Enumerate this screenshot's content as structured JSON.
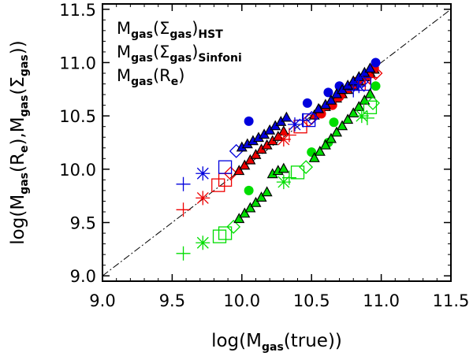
{
  "chart_data": {
    "type": "scatter",
    "title": "",
    "xlabel": {
      "pre": "log(M",
      "sub": "gas",
      "post": "(true))"
    },
    "ylabel": {
      "p1": "log(M",
      "s1": "gas",
      "p2": "(R",
      "s2": "e",
      "p3": "),M",
      "s3": "gas",
      "p4": "(Σ",
      "s4": "gas",
      "p5": "))"
    },
    "xlim": [
      9.0,
      11.5
    ],
    "ylim": [
      8.95,
      11.55
    ],
    "xticks": [
      "9.0",
      "9.5",
      "10.0",
      "10.5",
      "11.0",
      "11.5"
    ],
    "xtick_values": [
      9.0,
      9.5,
      10.0,
      10.5,
      11.0,
      11.5
    ],
    "yticks": [
      "9.0",
      "9.5",
      "10.0",
      "10.5",
      "11.0",
      "11.5"
    ],
    "ytick_values": [
      9.0,
      9.5,
      10.0,
      10.5,
      11.0,
      11.5
    ],
    "one_to_one_line": {
      "style": "dash-dot",
      "from": [
        9.0,
        9.0
      ],
      "to": [
        11.5,
        11.5
      ]
    },
    "legend": [
      {
        "pre": "M",
        "s1": "gas",
        "mid": "(Σ",
        "s2": "gas",
        "close": ")",
        "s3": "HST",
        "color": "#ee0000"
      },
      {
        "pre": "M",
        "s1": "gas",
        "mid": "(Σ",
        "s2": "gas",
        "close": ")",
        "s3": "Sinfoni",
        "color": "#0000dd"
      },
      {
        "pre": "M",
        "s1": "gas",
        "mid": "(R",
        "s2": "e",
        "close": ")",
        "s3": "",
        "color": "#00dd00"
      }
    ],
    "series": [
      {
        "name": "Mgas(Σgas)HST",
        "color": "#ee0000",
        "points": [
          {
            "m": "plus",
            "x": 9.58,
            "y": 9.62
          },
          {
            "m": "star",
            "x": 9.72,
            "y": 9.73
          },
          {
            "m": "square",
            "x": 9.83,
            "y": 9.85
          },
          {
            "m": "square",
            "x": 9.88,
            "y": 9.9
          },
          {
            "m": "diamond",
            "x": 9.92,
            "y": 9.96
          },
          {
            "m": "tri",
            "x": 9.98,
            "y": 9.98
          },
          {
            "m": "tri",
            "x": 10.02,
            "y": 10.03
          },
          {
            "m": "tri",
            "x": 10.06,
            "y": 10.08
          },
          {
            "m": "tri",
            "x": 10.1,
            "y": 10.13
          },
          {
            "m": "tri",
            "x": 10.14,
            "y": 10.18
          },
          {
            "m": "tri",
            "x": 10.18,
            "y": 10.22
          },
          {
            "m": "tri",
            "x": 10.22,
            "y": 10.26
          },
          {
            "m": "tri",
            "x": 10.26,
            "y": 10.3
          },
          {
            "m": "tri",
            "x": 10.3,
            "y": 10.35
          },
          {
            "m": "star",
            "x": 10.3,
            "y": 10.28
          },
          {
            "m": "plus",
            "x": 10.34,
            "y": 10.32
          },
          {
            "m": "square",
            "x": 10.42,
            "y": 10.4
          },
          {
            "m": "diamond",
            "x": 10.48,
            "y": 10.46
          },
          {
            "m": "tri",
            "x": 10.52,
            "y": 10.5
          },
          {
            "m": "tri",
            "x": 10.56,
            "y": 10.55
          },
          {
            "m": "tri",
            "x": 10.6,
            "y": 10.58
          },
          {
            "m": "tri",
            "x": 10.64,
            "y": 10.62
          },
          {
            "m": "tri",
            "x": 10.68,
            "y": 10.66
          },
          {
            "m": "tri",
            "x": 10.72,
            "y": 10.7
          },
          {
            "m": "circle",
            "x": 10.57,
            "y": 10.52
          },
          {
            "m": "circle",
            "x": 10.65,
            "y": 10.6
          },
          {
            "m": "circle",
            "x": 10.7,
            "y": 10.68
          },
          {
            "m": "tri",
            "x": 10.76,
            "y": 10.74
          },
          {
            "m": "tri",
            "x": 10.8,
            "y": 10.78
          },
          {
            "m": "tri",
            "x": 10.84,
            "y": 10.82
          },
          {
            "m": "tri",
            "x": 10.88,
            "y": 10.86
          },
          {
            "m": "tri",
            "x": 10.92,
            "y": 10.9
          },
          {
            "m": "tri",
            "x": 10.95,
            "y": 10.93
          },
          {
            "m": "circle",
            "x": 10.9,
            "y": 10.88
          },
          {
            "m": "circle",
            "x": 10.95,
            "y": 10.95
          },
          {
            "m": "star",
            "x": 10.88,
            "y": 10.85
          },
          {
            "m": "plus",
            "x": 10.92,
            "y": 10.86
          },
          {
            "m": "square",
            "x": 10.84,
            "y": 10.8
          },
          {
            "m": "diamond",
            "x": 10.96,
            "y": 10.9
          }
        ]
      },
      {
        "name": "Mgas(Σgas)Sinfoni",
        "color": "#0000dd",
        "points": [
          {
            "m": "plus",
            "x": 9.58,
            "y": 9.86
          },
          {
            "m": "star",
            "x": 9.72,
            "y": 9.96
          },
          {
            "m": "square",
            "x": 9.88,
            "y": 10.02
          },
          {
            "m": "diamond",
            "x": 9.96,
            "y": 10.17
          },
          {
            "m": "tri",
            "x": 10.0,
            "y": 10.2
          },
          {
            "m": "tri",
            "x": 10.04,
            "y": 10.23
          },
          {
            "m": "tri",
            "x": 10.08,
            "y": 10.26
          },
          {
            "m": "tri",
            "x": 10.12,
            "y": 10.29
          },
          {
            "m": "tri",
            "x": 10.16,
            "y": 10.32
          },
          {
            "m": "tri",
            "x": 10.2,
            "y": 10.36
          },
          {
            "m": "tri",
            "x": 10.24,
            "y": 10.4
          },
          {
            "m": "tri",
            "x": 10.28,
            "y": 10.44
          },
          {
            "m": "tri",
            "x": 10.32,
            "y": 10.48
          },
          {
            "m": "circle",
            "x": 10.05,
            "y": 10.45
          },
          {
            "m": "star",
            "x": 10.38,
            "y": 10.42
          },
          {
            "m": "plus",
            "x": 10.44,
            "y": 10.46
          },
          {
            "m": "square",
            "x": 10.48,
            "y": 10.46
          },
          {
            "m": "diamond",
            "x": 10.5,
            "y": 10.48
          },
          {
            "m": "circle",
            "x": 10.47,
            "y": 10.62
          },
          {
            "m": "circle",
            "x": 10.62,
            "y": 10.72
          },
          {
            "m": "circle",
            "x": 10.7,
            "y": 10.78
          },
          {
            "m": "tri",
            "x": 10.55,
            "y": 10.56
          },
          {
            "m": "tri",
            "x": 10.6,
            "y": 10.6
          },
          {
            "m": "tri",
            "x": 10.64,
            "y": 10.64
          },
          {
            "m": "tri",
            "x": 10.68,
            "y": 10.7
          },
          {
            "m": "tri",
            "x": 10.72,
            "y": 10.74
          },
          {
            "m": "tri",
            "x": 10.76,
            "y": 10.78
          },
          {
            "m": "tri",
            "x": 10.8,
            "y": 10.82
          },
          {
            "m": "tri",
            "x": 10.84,
            "y": 10.86
          },
          {
            "m": "tri",
            "x": 10.88,
            "y": 10.9
          },
          {
            "m": "tri",
            "x": 10.92,
            "y": 10.94
          },
          {
            "m": "circle",
            "x": 10.96,
            "y": 11.0
          },
          {
            "m": "star",
            "x": 10.84,
            "y": 10.78
          },
          {
            "m": "plus",
            "x": 10.8,
            "y": 10.74
          },
          {
            "m": "square",
            "x": 10.88,
            "y": 10.8
          },
          {
            "m": "diamond",
            "x": 10.86,
            "y": 10.82
          }
        ]
      },
      {
        "name": "Mgas(Re)",
        "color": "#00dd00",
        "points": [
          {
            "m": "plus",
            "x": 9.58,
            "y": 9.21
          },
          {
            "m": "star",
            "x": 9.72,
            "y": 9.31
          },
          {
            "m": "square",
            "x": 9.84,
            "y": 9.37
          },
          {
            "m": "square",
            "x": 9.88,
            "y": 9.4
          },
          {
            "m": "diamond",
            "x": 9.94,
            "y": 9.46
          },
          {
            "m": "circle",
            "x": 10.05,
            "y": 9.8
          },
          {
            "m": "tri",
            "x": 9.98,
            "y": 9.53
          },
          {
            "m": "tri",
            "x": 10.02,
            "y": 9.58
          },
          {
            "m": "tri",
            "x": 10.06,
            "y": 9.63
          },
          {
            "m": "tri",
            "x": 10.1,
            "y": 9.68
          },
          {
            "m": "tri",
            "x": 10.14,
            "y": 9.73
          },
          {
            "m": "tri",
            "x": 10.18,
            "y": 9.78
          },
          {
            "m": "tri",
            "x": 10.22,
            "y": 9.95
          },
          {
            "m": "tri",
            "x": 10.26,
            "y": 9.98
          },
          {
            "m": "tri",
            "x": 10.3,
            "y": 10.0
          },
          {
            "m": "star",
            "x": 10.3,
            "y": 9.88
          },
          {
            "m": "plus",
            "x": 10.34,
            "y": 9.92
          },
          {
            "m": "square",
            "x": 10.4,
            "y": 9.97
          },
          {
            "m": "diamond",
            "x": 10.46,
            "y": 10.02
          },
          {
            "m": "circle",
            "x": 10.5,
            "y": 10.16
          },
          {
            "m": "circle",
            "x": 10.62,
            "y": 10.25
          },
          {
            "m": "circle",
            "x": 10.66,
            "y": 10.44
          },
          {
            "m": "tri",
            "x": 10.52,
            "y": 10.1
          },
          {
            "m": "tri",
            "x": 10.56,
            "y": 10.16
          },
          {
            "m": "tri",
            "x": 10.6,
            "y": 10.22
          },
          {
            "m": "tri",
            "x": 10.64,
            "y": 10.28
          },
          {
            "m": "tri",
            "x": 10.68,
            "y": 10.34
          },
          {
            "m": "tri",
            "x": 10.72,
            "y": 10.4
          },
          {
            "m": "tri",
            "x": 10.76,
            "y": 10.46
          },
          {
            "m": "tri",
            "x": 10.8,
            "y": 10.52
          },
          {
            "m": "tri",
            "x": 10.84,
            "y": 10.58
          },
          {
            "m": "tri",
            "x": 10.88,
            "y": 10.64
          },
          {
            "m": "tri",
            "x": 10.92,
            "y": 10.7
          },
          {
            "m": "circle",
            "x": 10.96,
            "y": 10.78
          },
          {
            "m": "star",
            "x": 10.86,
            "y": 10.5
          },
          {
            "m": "plus",
            "x": 10.9,
            "y": 10.48
          },
          {
            "m": "square",
            "x": 10.92,
            "y": 10.58
          },
          {
            "m": "diamond",
            "x": 10.94,
            "y": 10.62
          }
        ]
      }
    ]
  }
}
